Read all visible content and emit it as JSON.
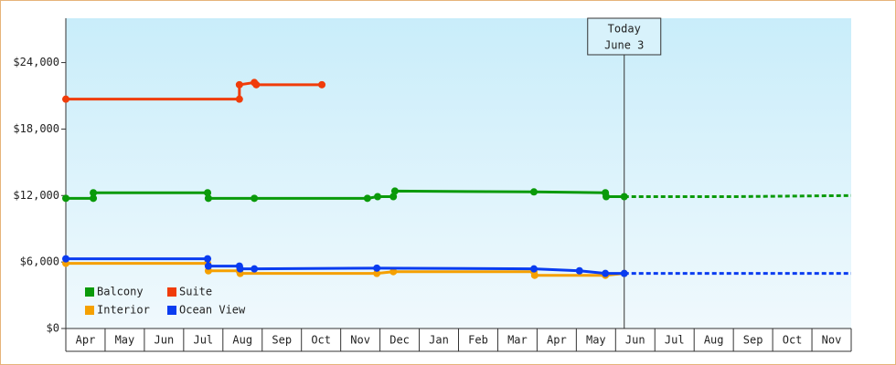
{
  "chart_data": {
    "type": "line",
    "categories": [
      "Apr",
      "May",
      "Jun",
      "Jul",
      "Aug",
      "Sep",
      "Oct",
      "Nov",
      "Dec",
      "Jan",
      "Feb",
      "Mar",
      "Apr",
      "May",
      "Jun",
      "Jul",
      "Aug",
      "Sep",
      "Oct",
      "Nov"
    ],
    "xlim": [
      0,
      20
    ],
    "ylim": [
      0,
      28000
    ],
    "yticks": [
      {
        "value": 0,
        "label": "$0"
      },
      {
        "value": 6000,
        "label": "$6,000"
      },
      {
        "value": 12000,
        "label": "$12,000"
      },
      {
        "value": 18000,
        "label": "$18,000"
      },
      {
        "value": 24000,
        "label": "$24,000"
      }
    ],
    "annotation": {
      "x": 14.22,
      "lines": [
        "Today",
        "June 3"
      ]
    },
    "series": [
      {
        "name": "Balcony",
        "color": "#0a9a0a",
        "x": [
          0,
          0.7,
          0.7,
          3.61,
          3.63,
          4.8,
          7.68,
          7.94,
          8.34,
          8.38,
          11.92,
          13.74,
          13.76,
          14.22
        ],
        "values": [
          11750,
          11750,
          12250,
          12250,
          11750,
          11750,
          11750,
          11900,
          11900,
          12400,
          12330,
          12250,
          11900,
          11900
        ],
        "forecast_x": [
          14.22,
          17.02,
          20
        ],
        "forecast_values": [
          11900,
          11900,
          12000
        ]
      },
      {
        "name": "Suite",
        "color": "#f03c0a",
        "x": [
          0,
          4.42,
          4.42,
          4.8,
          4.85,
          6.52
        ],
        "values": [
          20700,
          20700,
          22000,
          22200,
          22000,
          22000
        ]
      },
      {
        "name": "Interior",
        "color": "#f5a000",
        "x": [
          0,
          3.61,
          3.63,
          4.42,
          4.44,
          7.92,
          8.34,
          11.92,
          11.94,
          13.74,
          14.22
        ],
        "values": [
          5880,
          5880,
          5210,
          5210,
          4970,
          4970,
          5130,
          5130,
          4800,
          4800,
          4970
        ]
      },
      {
        "name": "Ocean View",
        "color": "#0a3cf0",
        "x": [
          0,
          3.61,
          3.63,
          4.42,
          4.44,
          4.8,
          7.92,
          11.92,
          13.08,
          13.74,
          14.22
        ],
        "values": [
          6290,
          6290,
          5630,
          5630,
          5380,
          5380,
          5450,
          5380,
          5210,
          4970,
          4970
        ],
        "forecast_x": [
          14.22,
          20
        ],
        "forecast_values": [
          4970,
          4970
        ]
      }
    ]
  }
}
